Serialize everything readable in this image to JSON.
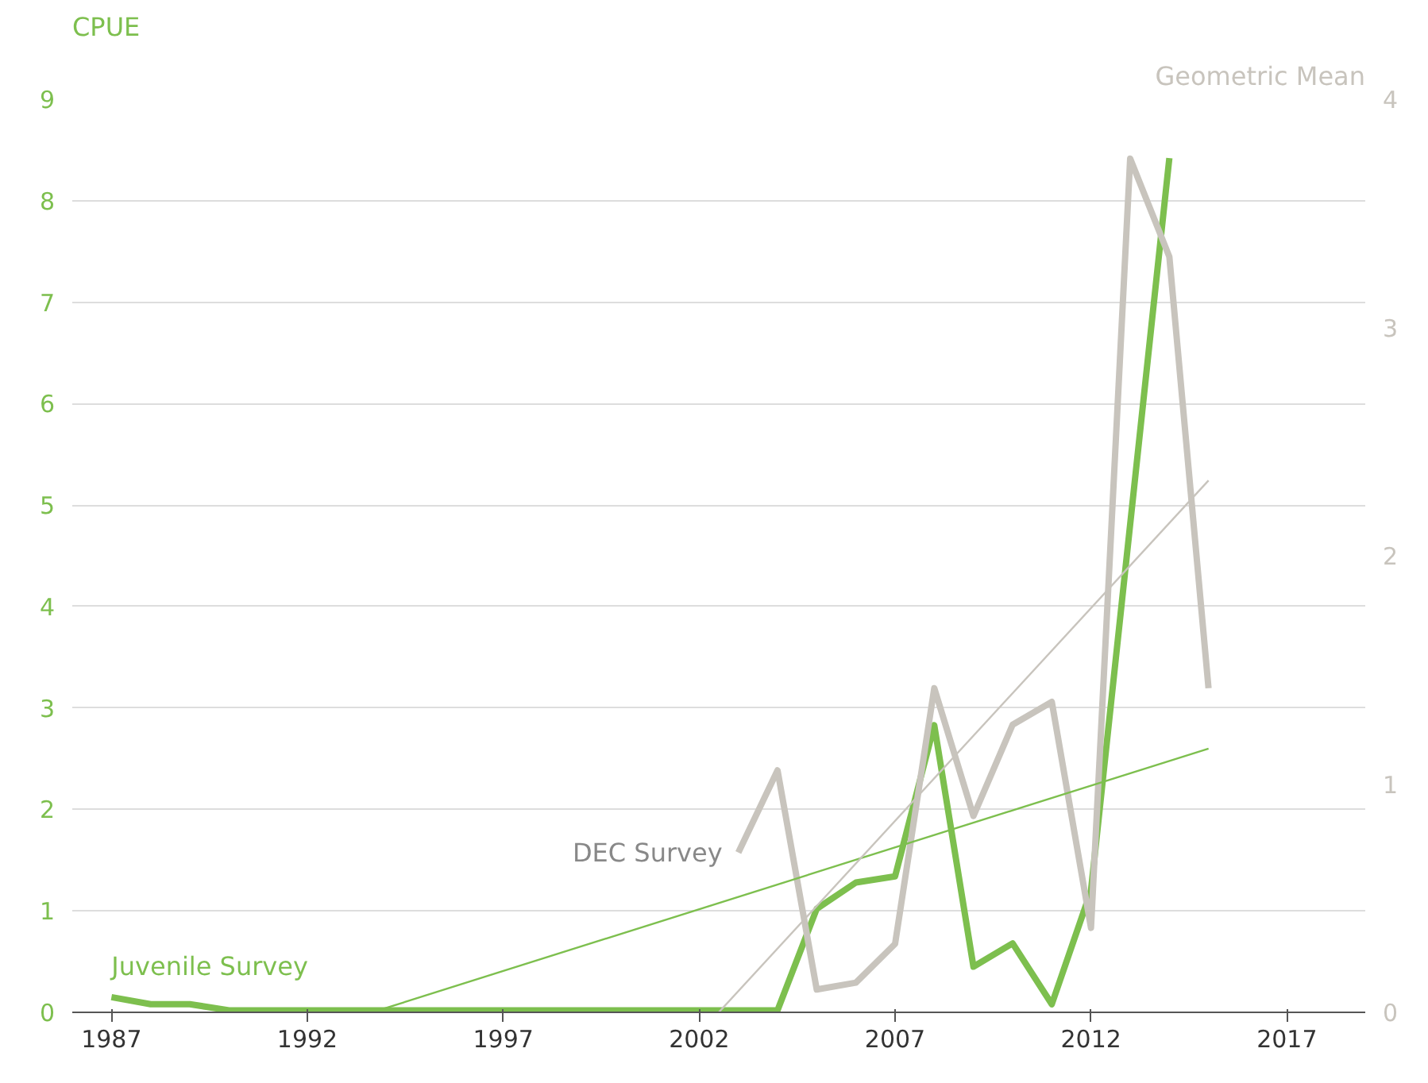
{
  "chart_data": {
    "type": "line",
    "ylabel": "CPUE",
    "y2label": "Geometric Mean",
    "xlim": [
      1986,
      2019
    ],
    "xticks": [
      1987,
      1992,
      1997,
      2002,
      2007,
      2012,
      2017
    ],
    "ylim": [
      0,
      9
    ],
    "yticks": [
      0,
      1,
      2,
      3,
      4,
      5,
      6,
      7,
      8,
      9
    ],
    "y2lim": [
      0,
      4
    ],
    "y2ticks": [
      0,
      1,
      2,
      3,
      4
    ],
    "grid": "y",
    "series": [
      {
        "name": "Juvenile Survey",
        "color": "#7dbf4e",
        "x": [
          1987,
          1988,
          1989,
          1990,
          1991,
          1992,
          1993,
          1994,
          1995,
          1996,
          1997,
          1998,
          1999,
          2000,
          2001,
          2002,
          2003,
          2004,
          2005,
          2006,
          2007,
          2008,
          2009,
          2010,
          2011,
          2012,
          2014
        ],
        "values": [
          0.15,
          0.08,
          0.08,
          0.02,
          0.02,
          0.02,
          0.02,
          0.02,
          0.02,
          0.02,
          0.02,
          0.02,
          0.02,
          0.02,
          0.02,
          0.02,
          0.02,
          0.02,
          1.02,
          1.28,
          1.34,
          2.83,
          0.45,
          0.68,
          0.08,
          1.2,
          8.42
        ]
      },
      {
        "name": "DEC Survey",
        "color": "#c8c4bd",
        "axis": "y2",
        "x": [
          2003,
          2004,
          2005,
          2006,
          2007,
          2008,
          2009,
          2010,
          2011,
          2012,
          2013,
          2014,
          2015
        ],
        "values": [
          0.7,
          1.06,
          0.1,
          0.13,
          0.3,
          1.42,
          0.86,
          1.26,
          1.36,
          0.37,
          3.74,
          3.31,
          1.42
        ]
      },
      {
        "color": "#7dbf4e",
        "x": [
          1993.9,
          2015
        ],
        "values": [
          0.03,
          2.6
        ]
      },
      {
        "color": "#c8c4bd",
        "axis": "y2",
        "x": [
          2002.5,
          2015
        ],
        "values": [
          0,
          2.33
        ]
      }
    ]
  }
}
